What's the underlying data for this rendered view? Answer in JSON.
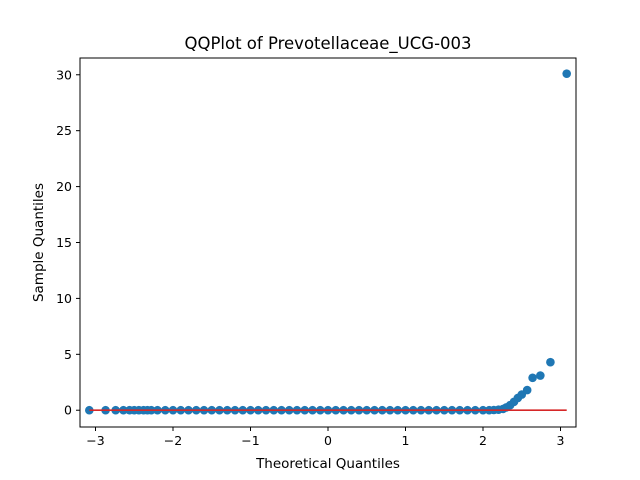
{
  "chart_data": {
    "type": "scatter",
    "title": "QQPlot of Prevotellaceae_UCG-003",
    "xlabel": "Theoretical Quantiles",
    "ylabel": "Sample Quantiles",
    "xlim": [
      -3.2,
      3.2
    ],
    "ylim": [
      -1.5,
      31.5
    ],
    "xticks": [
      -3,
      -2,
      -1,
      0,
      1,
      2,
      3
    ],
    "xtick_labels": [
      "−3",
      "−2",
      "−1",
      "0",
      "1",
      "2",
      "3"
    ],
    "yticks": [
      0,
      5,
      10,
      15,
      20,
      25,
      30
    ],
    "ytick_labels": [
      "0",
      "5",
      "10",
      "15",
      "20",
      "25",
      "30"
    ],
    "grid": false,
    "legend": "none",
    "marker_color": "#1f77b4",
    "line_color": "#d62728",
    "reference_line": {
      "x": [
        -3.08,
        3.08
      ],
      "y": [
        0,
        0
      ]
    },
    "series": [
      {
        "points": [
          [
            -3.08,
            0
          ],
          [
            -2.87,
            0
          ],
          [
            -2.74,
            0
          ],
          [
            -2.64,
            0
          ],
          [
            -2.56,
            0
          ],
          [
            -2.5,
            0
          ],
          [
            -2.44,
            0
          ],
          [
            -2.38,
            0
          ],
          [
            -2.33,
            0
          ],
          [
            -2.28,
            0
          ],
          [
            -2.2,
            0
          ],
          [
            -2.1,
            0
          ],
          [
            -2.0,
            0
          ],
          [
            -1.9,
            0
          ],
          [
            -1.8,
            0
          ],
          [
            -1.7,
            0
          ],
          [
            -1.6,
            0
          ],
          [
            -1.5,
            0
          ],
          [
            -1.4,
            0
          ],
          [
            -1.3,
            0
          ],
          [
            -1.2,
            0
          ],
          [
            -1.1,
            0
          ],
          [
            -1.0,
            0
          ],
          [
            -0.9,
            0
          ],
          [
            -0.8,
            0
          ],
          [
            -0.7,
            0
          ],
          [
            -0.6,
            0
          ],
          [
            -0.5,
            0
          ],
          [
            -0.4,
            0
          ],
          [
            -0.3,
            0
          ],
          [
            -0.2,
            0
          ],
          [
            -0.1,
            0
          ],
          [
            0.0,
            0
          ],
          [
            0.1,
            0
          ],
          [
            0.2,
            0
          ],
          [
            0.3,
            0
          ],
          [
            0.4,
            0
          ],
          [
            0.5,
            0
          ],
          [
            0.6,
            0
          ],
          [
            0.7,
            0
          ],
          [
            0.8,
            0
          ],
          [
            0.9,
            0
          ],
          [
            1.0,
            0
          ],
          [
            1.1,
            0
          ],
          [
            1.2,
            0
          ],
          [
            1.3,
            0
          ],
          [
            1.4,
            0
          ],
          [
            1.5,
            0
          ],
          [
            1.6,
            0
          ],
          [
            1.7,
            0
          ],
          [
            1.8,
            0
          ],
          [
            1.9,
            0
          ],
          [
            2.0,
            0
          ],
          [
            2.08,
            0
          ],
          [
            2.14,
            0.02
          ],
          [
            2.2,
            0.05
          ],
          [
            2.26,
            0.12
          ],
          [
            2.3,
            0.25
          ],
          [
            2.35,
            0.45
          ],
          [
            2.4,
            0.75
          ],
          [
            2.45,
            1.1
          ],
          [
            2.5,
            1.4
          ],
          [
            2.57,
            1.8
          ],
          [
            2.64,
            2.9
          ],
          [
            2.74,
            3.1
          ],
          [
            2.87,
            4.3
          ],
          [
            3.08,
            30.1
          ]
        ]
      }
    ]
  }
}
